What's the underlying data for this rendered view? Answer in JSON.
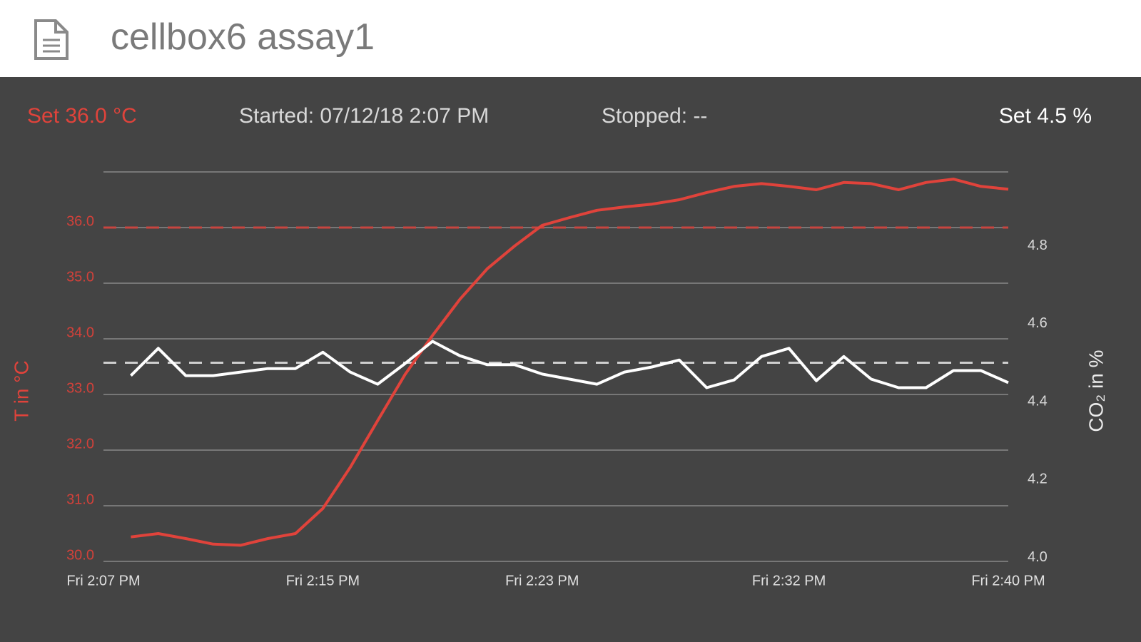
{
  "header": {
    "title": "cellbox6 assay1"
  },
  "status": {
    "temperature_set": "Set 36.0 °C",
    "started": "Started: 07/12/18 2:07 PM",
    "stopped": "Stopped: --",
    "co2_set": "Set 4.5 %"
  },
  "chart_data": {
    "type": "line",
    "x": [
      1,
      2,
      3,
      4,
      5,
      6,
      7,
      8,
      9,
      10,
      11,
      12,
      13,
      14,
      15,
      16,
      17,
      18,
      19,
      20,
      21,
      22,
      23,
      24,
      25,
      26,
      27,
      28,
      29,
      30,
      31,
      32,
      33
    ],
    "xlim": [
      0,
      33
    ],
    "xticks": [
      {
        "value": 0,
        "label": "Fri 2:07 PM"
      },
      {
        "value": 8,
        "label": "Fri 2:15 PM"
      },
      {
        "value": 16,
        "label": "Fri 2:23 PM"
      },
      {
        "value": 25,
        "label": "Fri 2:32 PM"
      },
      {
        "value": 33,
        "label": "Fri 2:40 PM"
      }
    ],
    "ylim": [
      30,
      37
    ],
    "yticks": [
      {
        "value": 30,
        "label": "30.0"
      },
      {
        "value": 31,
        "label": "31.0"
      },
      {
        "value": 32,
        "label": "32.0"
      },
      {
        "value": 33,
        "label": "33.0"
      },
      {
        "value": 34,
        "label": "34.0"
      },
      {
        "value": 35,
        "label": "35.0"
      },
      {
        "value": 36,
        "label": "36.0"
      }
    ],
    "y2lim": [
      3.99,
      4.99
    ],
    "y2ticks": [
      {
        "value": 4,
        "label": "4.0"
      },
      4.2,
      4.4,
      4.6,
      4.8
    ],
    "y_label": "T in °C",
    "y2_label": "CO₂ in %",
    "grid": true,
    "series": [
      {
        "name": "T",
        "color": "#e0433b",
        "values": [
          30.44,
          30.5,
          30.41,
          30.31,
          30.29,
          30.41,
          30.5,
          30.95,
          31.69,
          32.53,
          33.36,
          34.06,
          34.71,
          35.26,
          35.67,
          36.04,
          36.18,
          36.31,
          36.37,
          36.42,
          36.5,
          36.63,
          36.74,
          36.79,
          36.74,
          36.68,
          36.81,
          36.79,
          36.68,
          36.81,
          36.87,
          36.74,
          36.69
        ]
      },
      {
        "name": "CO2",
        "color": "#ffffff",
        "axis": "y2",
        "values": [
          4.467,
          4.537,
          4.467,
          4.467,
          4.476,
          4.485,
          4.485,
          4.527,
          4.476,
          4.445,
          4.498,
          4.555,
          4.518,
          4.495,
          4.495,
          4.471,
          4.458,
          4.445,
          4.476,
          4.489,
          4.507,
          4.436,
          4.456,
          4.516,
          4.537,
          4.454,
          4.516,
          4.458,
          4.436,
          4.436,
          4.48,
          4.48,
          4.449
        ]
      }
    ],
    "setpoints": [
      {
        "value": 36,
        "axis": "y",
        "color": "#c8453f"
      },
      {
        "value": 4.5,
        "axis": "y2",
        "color": "#cfcfcf"
      }
    ]
  }
}
